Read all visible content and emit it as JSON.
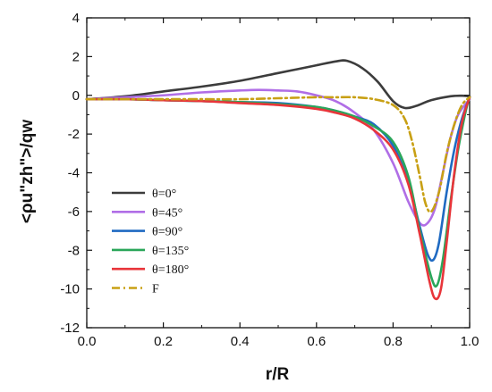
{
  "chart_data": {
    "type": "line",
    "title": "",
    "xlabel": "r/R",
    "ylabel": "<ρu\"zh\">/qw",
    "xlim": [
      0.0,
      1.0
    ],
    "ylim": [
      -12,
      4
    ],
    "xticks": [
      "0.0",
      "0.2",
      "0.4",
      "0.6",
      "0.8",
      "1.0"
    ],
    "yticks": [
      "4",
      "2",
      "0",
      "-2",
      "-4",
      "-6",
      "-8",
      "-10",
      "-12"
    ],
    "grid": false,
    "legend_position": "bottom-left",
    "series": [
      {
        "name": "θ=0°",
        "color": "#3c3c3c",
        "dash": "solid",
        "x": [
          0.0,
          0.1,
          0.2,
          0.3,
          0.4,
          0.5,
          0.55,
          0.6,
          0.65,
          0.68,
          0.72,
          0.76,
          0.8,
          0.83,
          0.86,
          0.9,
          0.95,
          0.98,
          1.0
        ],
        "y": [
          -0.2,
          -0.05,
          0.2,
          0.45,
          0.75,
          1.15,
          1.35,
          1.55,
          1.75,
          1.78,
          1.4,
          0.7,
          -0.3,
          -0.65,
          -0.55,
          -0.25,
          -0.05,
          -0.02,
          -0.05
        ]
      },
      {
        "name": "θ=45°",
        "color": "#b06ee6",
        "dash": "solid",
        "x": [
          0.0,
          0.1,
          0.2,
          0.3,
          0.4,
          0.45,
          0.5,
          0.55,
          0.6,
          0.65,
          0.7,
          0.75,
          0.8,
          0.84,
          0.87,
          0.89,
          0.91,
          0.93,
          0.95,
          0.97,
          1.0
        ],
        "y": [
          -0.2,
          -0.1,
          0.0,
          0.15,
          0.25,
          0.28,
          0.25,
          0.2,
          0.0,
          -0.3,
          -0.9,
          -1.8,
          -3.5,
          -5.5,
          -6.6,
          -6.6,
          -5.8,
          -4.0,
          -2.2,
          -1.0,
          -0.2
        ]
      },
      {
        "name": "θ=90°",
        "color": "#1f6ac2",
        "dash": "solid",
        "x": [
          0.0,
          0.1,
          0.2,
          0.3,
          0.4,
          0.5,
          0.6,
          0.65,
          0.7,
          0.75,
          0.8,
          0.84,
          0.87,
          0.89,
          0.905,
          0.92,
          0.94,
          0.96,
          0.98,
          1.0
        ],
        "y": [
          -0.2,
          -0.2,
          -0.25,
          -0.3,
          -0.35,
          -0.4,
          -0.6,
          -0.8,
          -1.1,
          -1.5,
          -2.6,
          -4.5,
          -6.8,
          -8.2,
          -8.5,
          -7.6,
          -5.0,
          -2.8,
          -1.2,
          -0.1
        ]
      },
      {
        "name": "θ=135°",
        "color": "#2aa65a",
        "dash": "solid",
        "x": [
          0.0,
          0.1,
          0.2,
          0.3,
          0.4,
          0.5,
          0.6,
          0.65,
          0.7,
          0.75,
          0.8,
          0.84,
          0.87,
          0.9,
          0.915,
          0.93,
          0.95,
          0.97,
          0.99,
          1.0
        ],
        "y": [
          -0.2,
          -0.2,
          -0.25,
          -0.3,
          -0.35,
          -0.45,
          -0.6,
          -0.8,
          -1.1,
          -1.6,
          -2.4,
          -4.2,
          -7.0,
          -9.4,
          -9.8,
          -8.5,
          -5.5,
          -2.8,
          -0.8,
          -0.1
        ]
      },
      {
        "name": "θ=180°",
        "color": "#e8353a",
        "dash": "solid",
        "x": [
          0.0,
          0.1,
          0.2,
          0.3,
          0.4,
          0.5,
          0.6,
          0.65,
          0.7,
          0.75,
          0.8,
          0.84,
          0.87,
          0.895,
          0.91,
          0.925,
          0.94,
          0.96,
          0.98,
          1.0
        ],
        "y": [
          -0.2,
          -0.2,
          -0.25,
          -0.3,
          -0.4,
          -0.5,
          -0.7,
          -0.9,
          -1.2,
          -1.8,
          -2.8,
          -4.6,
          -7.2,
          -9.6,
          -10.5,
          -10.0,
          -7.6,
          -4.0,
          -1.4,
          -0.1
        ]
      },
      {
        "name": "F",
        "color": "#c8a014",
        "dash": "dashdot",
        "x": [
          0.0,
          0.1,
          0.2,
          0.3,
          0.4,
          0.5,
          0.6,
          0.65,
          0.7,
          0.75,
          0.8,
          0.83,
          0.85,
          0.87,
          0.885,
          0.9,
          0.92,
          0.94,
          0.96,
          0.98,
          1.0
        ],
        "y": [
          -0.2,
          -0.2,
          -0.2,
          -0.2,
          -0.2,
          -0.15,
          -0.1,
          -0.1,
          -0.1,
          -0.2,
          -0.5,
          -1.2,
          -2.4,
          -4.2,
          -5.6,
          -6.0,
          -5.0,
          -3.0,
          -1.5,
          -0.5,
          -0.1
        ]
      }
    ]
  }
}
